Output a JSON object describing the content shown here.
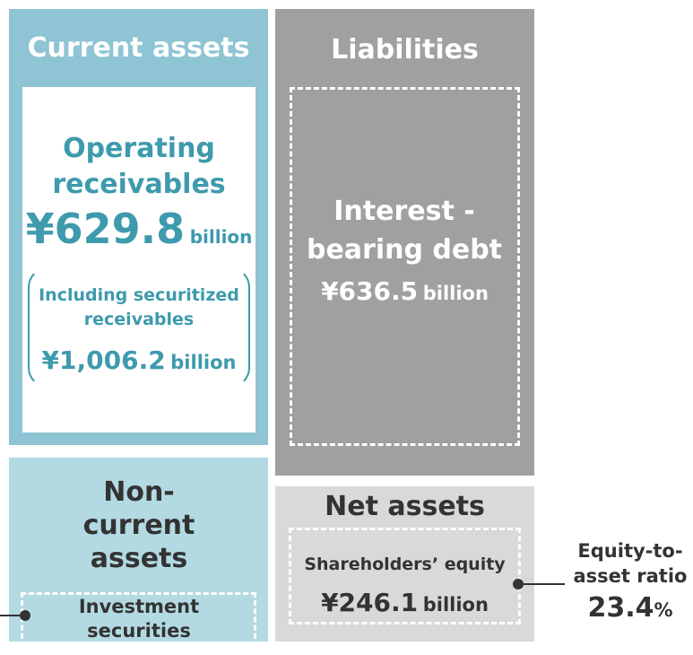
{
  "current_assets": {
    "title": "Current assets",
    "item": {
      "label": "Operating receivables",
      "amount": "¥629.8",
      "unit": "billion",
      "note": {
        "label": "Including securitized receivables",
        "amount": "¥1,006.2",
        "unit": "billion"
      }
    }
  },
  "non_current_assets": {
    "title": "Non-current assets",
    "item": {
      "label": "Investment securities"
    }
  },
  "liabilities": {
    "title": "Liabilities",
    "item": {
      "label": "Interest - bearing debt",
      "amount": "¥636.5",
      "unit": "billion"
    }
  },
  "net_assets": {
    "title": "Net assets",
    "item": {
      "label": "Shareholders’ equity",
      "amount": "¥246.1",
      "unit": "billion"
    }
  },
  "ratio": {
    "label": "Equity-to-asset ratio",
    "value": "23.4",
    "unit": "%"
  }
}
